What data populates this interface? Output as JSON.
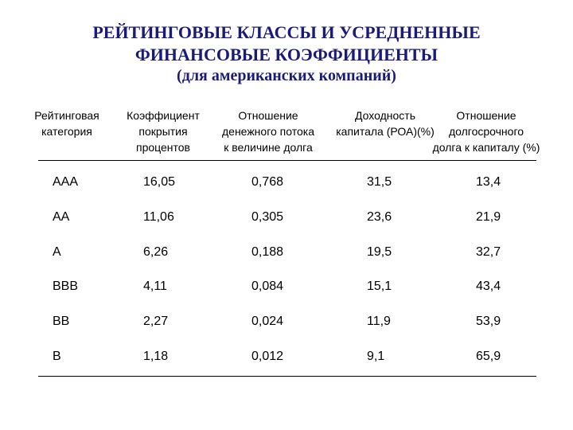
{
  "title": {
    "line1": "РЕЙТИНГОВЫЕ КЛАССЫ И УСРЕДНЕННЫЕ",
    "line2": "ФИНАНСОВЫЕ КОЭФФИЦИЕНТЫ",
    "line3": "(для американских компаний)"
  },
  "table": {
    "headers": [
      [
        "Рейтинговая",
        "категория"
      ],
      [
        "Коэффициент",
        "покрытия",
        "процентов"
      ],
      [
        "Отношение",
        "денежного потока",
        "к величине долга"
      ],
      [
        "Доходность",
        "капитала (РОА)(%)"
      ],
      [
        "Отношение",
        "долгосрочного",
        "долга к капиталу (%)"
      ]
    ],
    "rows": [
      [
        "AAA",
        "16,05",
        "0,768",
        "31,5",
        "13,4"
      ],
      [
        "AA",
        "11,06",
        "0,305",
        "23,6",
        "21,9"
      ],
      [
        "A",
        "6,26",
        "0,188",
        "19,5",
        "32,7"
      ],
      [
        "BBB",
        "4,11",
        "0,084",
        "15,1",
        "43,4"
      ],
      [
        "BB",
        "2,27",
        "0,024",
        "11,9",
        "53,9"
      ],
      [
        "B",
        "1,18",
        "0,012",
        "9,1",
        "65,9"
      ]
    ]
  }
}
